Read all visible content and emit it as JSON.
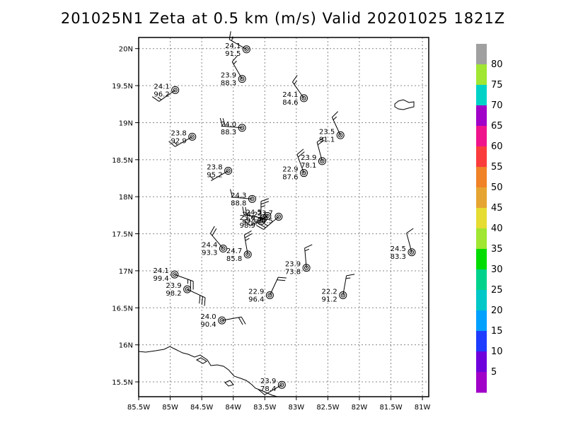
{
  "chart_data": {
    "type": "scatter",
    "title": "201025N1 Zeta at 0.5 km (m/s) Valid 20201025 1821Z",
    "xlim": [
      -85.5,
      -80.9
    ],
    "ylim": [
      15.3,
      20.15
    ],
    "x_ticks": [
      {
        "value": -85.5,
        "label": "85.5W"
      },
      {
        "value": -85,
        "label": "85W"
      },
      {
        "value": -84.5,
        "label": "84.5W"
      },
      {
        "value": -84,
        "label": "84W"
      },
      {
        "value": -83.5,
        "label": "83.5W"
      },
      {
        "value": -83,
        "label": "83W"
      },
      {
        "value": -82.5,
        "label": "82.5W"
      },
      {
        "value": -82,
        "label": "82W"
      },
      {
        "value": -81.5,
        "label": "81.5W"
      },
      {
        "value": -81,
        "label": "81W"
      }
    ],
    "y_ticks": [
      {
        "value": 15.5,
        "label": "15.5N"
      },
      {
        "value": 16,
        "label": "16N"
      },
      {
        "value": 16.5,
        "label": "16.5N"
      },
      {
        "value": 17,
        "label": "17N"
      },
      {
        "value": 17.5,
        "label": "17.5N"
      },
      {
        "value": 18,
        "label": "18N"
      },
      {
        "value": 18.5,
        "label": "18.5N"
      },
      {
        "value": 19,
        "label": "19N"
      },
      {
        "value": 19.5,
        "label": "19.5N"
      },
      {
        "value": 20,
        "label": "20N"
      }
    ],
    "grid": true,
    "points": [
      {
        "lon": -83.79,
        "lat": 19.99,
        "t": "24.1",
        "p": "91.5",
        "dir": 300,
        "spd": 15
      },
      {
        "lon": -83.86,
        "lat": 19.59,
        "t": "23.9",
        "p": "88.3",
        "dir": 330,
        "spd": 15
      },
      {
        "lon": -84.92,
        "lat": 19.44,
        "t": "24.1",
        "p": "96.2",
        "dir": 235,
        "spd": 15
      },
      {
        "lon": -82.88,
        "lat": 19.33,
        "t": "24.1",
        "p": "84.6",
        "dir": 325,
        "spd": 15
      },
      {
        "lon": -83.86,
        "lat": 18.93,
        "t": "24.0",
        "p": "88.3",
        "dir": 275,
        "spd": 20
      },
      {
        "lon": -84.65,
        "lat": 18.81,
        "t": "23.8",
        "p": "92.9",
        "dir": 240,
        "spd": 15
      },
      {
        "lon": -82.3,
        "lat": 18.83,
        "t": "23.5",
        "p": "91.1",
        "dir": 335,
        "spd": 15
      },
      {
        "lon": -82.59,
        "lat": 18.48,
        "t": "23.9",
        "p": "78.1",
        "dir": 345,
        "spd": 20
      },
      {
        "lon": -82.88,
        "lat": 18.32,
        "t": "22.9",
        "p": "87.6",
        "dir": 340,
        "spd": 20
      },
      {
        "lon": -84.08,
        "lat": 18.35,
        "t": "23.8",
        "p": "95.2",
        "dir": 240,
        "spd": 5
      },
      {
        "lon": -83.7,
        "lat": 17.97,
        "t": "24.3",
        "p": "88.8",
        "dir": 275,
        "spd": 10
      },
      {
        "lon": -83.52,
        "lat": 17.71,
        "t": "24.2",
        "p": "92.5",
        "dir": 280,
        "spd": 20
      },
      {
        "lon": -83.46,
        "lat": 17.74,
        "t": "24.5",
        "p": "92.7",
        "dir": 240,
        "spd": 10
      },
      {
        "lon": -83.56,
        "lat": 17.67,
        "t": "23.6",
        "p": "98.9",
        "dir": 360,
        "spd": 25
      },
      {
        "lon": -83.28,
        "lat": 17.73,
        "t": "23.7",
        "p": "90.5",
        "dir": 230,
        "spd": 25
      },
      {
        "lon": -84.16,
        "lat": 17.3,
        "t": "24.4",
        "p": "93.3",
        "dir": 320,
        "spd": 20
      },
      {
        "lon": -83.77,
        "lat": 17.22,
        "t": "24.7",
        "p": "85.8",
        "dir": 350,
        "spd": 25
      },
      {
        "lon": -82.84,
        "lat": 17.04,
        "t": "23.9",
        "p": "73.8",
        "dir": 355,
        "spd": 15
      },
      {
        "lon": -81.17,
        "lat": 17.25,
        "t": "24.5",
        "p": "83.3",
        "dir": 345,
        "spd": 10
      },
      {
        "lon": -84.93,
        "lat": 16.95,
        "t": "24.1",
        "p": "99.4",
        "dir": 110,
        "spd": 25
      },
      {
        "lon": -84.73,
        "lat": 16.75,
        "t": "23.9",
        "p": "98.2",
        "dir": 115,
        "spd": 30
      },
      {
        "lon": -83.42,
        "lat": 16.67,
        "t": "22.9",
        "p": "96.4",
        "dir": 25,
        "spd": 20
      },
      {
        "lon": -82.26,
        "lat": 16.67,
        "t": "22.2",
        "p": "91.2",
        "dir": 10,
        "spd": 15
      },
      {
        "lon": -84.18,
        "lat": 16.33,
        "t": "24.0",
        "p": "90.4",
        "dir": 80,
        "spd": 20
      },
      {
        "lon": -83.23,
        "lat": 15.46,
        "t": "23.9",
        "p": "78.4",
        "dir": 240,
        "spd": 10
      }
    ],
    "colorbar": {
      "labels": [
        "80",
        "75",
        "70",
        "65",
        "60",
        "55",
        "50",
        "45",
        "40",
        "35",
        "30",
        "25",
        "20",
        "15",
        "10",
        "5"
      ],
      "colors": [
        "#a0a0a0",
        "#a0e632",
        "#00d2c8",
        "#a000c8",
        "#f0148c",
        "#fa3c3c",
        "#f08228",
        "#e6a532",
        "#e6dc32",
        "#a0e632",
        "#00dc00",
        "#00d28c",
        "#00c8c8",
        "#00a0ff",
        "#1e3cff",
        "#6e00dc",
        "#a000c8"
      ]
    }
  }
}
